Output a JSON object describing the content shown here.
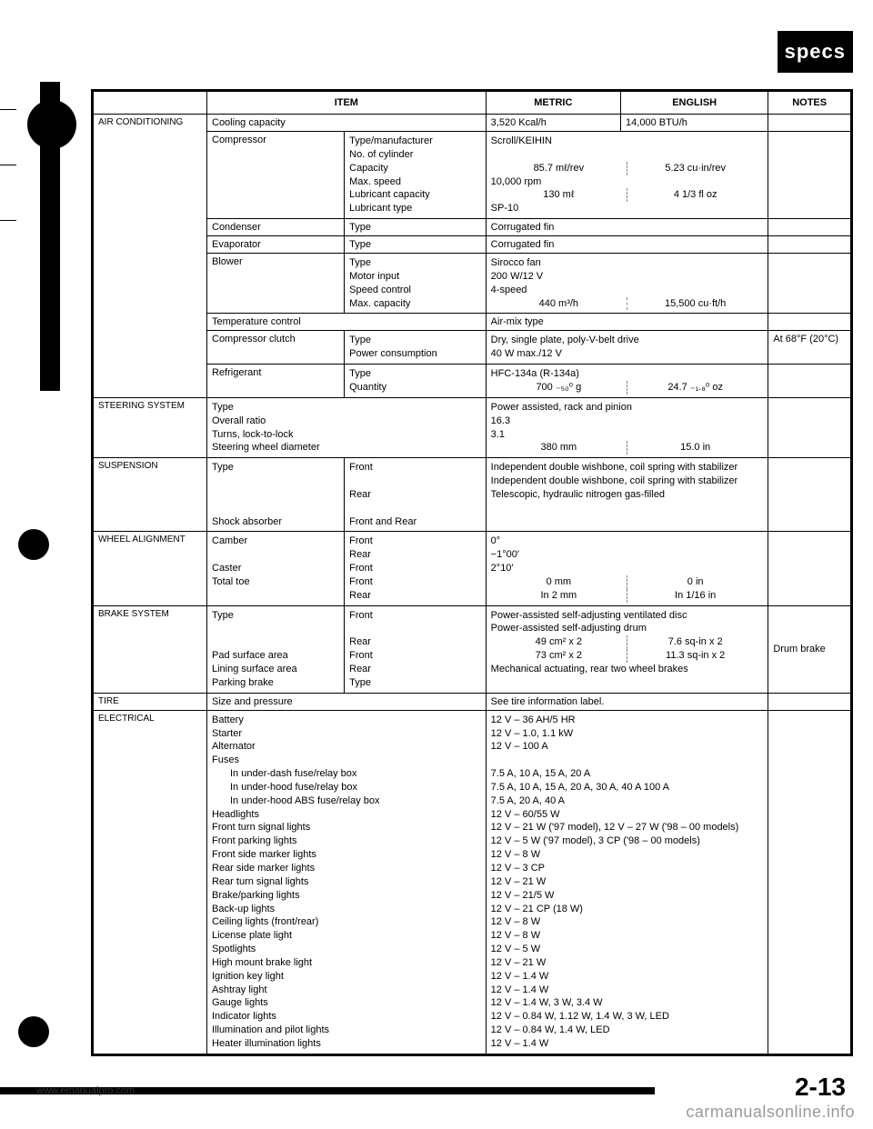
{
  "badge": "specs",
  "headers": {
    "item": "ITEM",
    "metric": "METRIC",
    "english": "ENGLISH",
    "notes": "NOTES"
  },
  "sections": {
    "ac": {
      "title": "AIR CONDITIONING",
      "rows": {
        "cooling": {
          "item": "Cooling capacity",
          "metric": "3,520 Kcal/h",
          "english": "14,000 BTU/h"
        },
        "compressor": {
          "item": "Compressor",
          "sub": [
            "Type/manufacturer",
            "No. of cylinder",
            "Capacity",
            "Max. speed",
            "Lubricant capacity",
            "Lubricant type"
          ],
          "span1": "Scroll/KEIHIN",
          "cap_m": "85.7 mℓ/rev",
          "cap_e": "5.23 cu·in/rev",
          "speed": "10,000 rpm",
          "lub_m": "130 mℓ",
          "lub_e": "4 1/3 fl oz",
          "lubtype": "SP-10"
        },
        "condenser": {
          "item": "Condenser",
          "sub": "Type",
          "val": "Corrugated fin"
        },
        "evaporator": {
          "item": "Evaporator",
          "sub": "Type",
          "val": "Corrugated fin"
        },
        "blower": {
          "item": "Blower",
          "sub": [
            "Type",
            "Motor input",
            "Speed control",
            "Max. capacity"
          ],
          "v1": "Sirocco fan",
          "v2": "200 W/12 V",
          "v3": "4-speed",
          "cap_m": "440 m³/h",
          "cap_e": "15,500 cu·ft/h"
        },
        "tempctrl": {
          "item": "Temperature control",
          "val": "Air-mix type"
        },
        "clutch": {
          "item": "Compressor clutch",
          "sub": [
            "Type",
            "Power consumption"
          ],
          "v1": "Dry, single plate, poly-V-belt drive",
          "v2": "40 W max./12 V",
          "note": "At 68°F (20°C)"
        },
        "refrigerant": {
          "item": "Refrigerant",
          "sub": [
            "Type",
            "Quantity"
          ],
          "v1": "HFC-134a (R-134a)",
          "q_m": "700 ₋₅₀⁰ g",
          "q_e": "24.7 ₋₁.₈⁰ oz"
        }
      }
    },
    "steering": {
      "title": "STEERING SYSTEM",
      "items": [
        "Type",
        "Overall ratio",
        "Turns, lock-to-lock",
        "Steering wheel diameter"
      ],
      "v1": "Power assisted, rack and pinion",
      "v2": "16.3",
      "v3": "3.1",
      "d_m": "380 mm",
      "d_e": "15.0 in"
    },
    "suspension": {
      "title": "SUSPENSION",
      "type": "Type",
      "front": "Front",
      "rear": "Rear",
      "type_f": "Independent double wishbone, coil spring with stabilizer",
      "type_r": "Independent double wishbone, coil spring with stabilizer",
      "shock": "Shock absorber",
      "shock_sub": "Front and Rear",
      "shock_v": "Telescopic, hydraulic nitrogen gas-filled"
    },
    "wheel": {
      "title": "WHEEL ALIGNMENT",
      "items": [
        "Camber",
        "",
        "Caster",
        "Total toe",
        ""
      ],
      "subs": [
        "Front",
        "Rear",
        "Front",
        "Front",
        "Rear"
      ],
      "v1": "0°",
      "v2": "−1°00′",
      "v3": "2°10′",
      "t_m1": "0 mm",
      "t_e1": "0 in",
      "t_m2": "In 2 mm",
      "t_e2": "In 1/16 in"
    },
    "brake": {
      "title": "BRAKE SYSTEM",
      "items": [
        "Type",
        "",
        "Pad surface area",
        "Lining surface area",
        "Parking brake"
      ],
      "subs": [
        "Front",
        "Rear",
        "Front",
        "Rear",
        "Type"
      ],
      "v1": "Power-assisted self-adjusting ventilated disc",
      "v2": "Power-assisted self-adjusting drum",
      "p_m": "49 cm² x 2",
      "p_e": "7.6 sq-in x 2",
      "l_m": "73 cm² x 2",
      "l_e": "11.3 sq-in x 2",
      "pb": "Mechanical actuating, rear two wheel brakes",
      "note": "Drum brake"
    },
    "tire": {
      "title": "TIRE",
      "item": "Size and pressure",
      "val": "See tire information label."
    },
    "electrical": {
      "title": "ELECTRICAL",
      "rows": [
        {
          "item": "Battery",
          "val": "12 V – 36 AH/5 HR"
        },
        {
          "item": "Starter",
          "val": "12 V – 1.0, 1.1 kW"
        },
        {
          "item": "Alternator",
          "val": "12 V – 100 A"
        },
        {
          "item": "Fuses",
          "val": ""
        },
        {
          "item": "In under-dash fuse/relay box",
          "indent": true,
          "val": "7.5 A, 10 A, 15 A, 20 A"
        },
        {
          "item": "In under-hood fuse/relay box",
          "indent": true,
          "val": "7.5 A, 10 A, 15 A, 20 A, 30 A, 40 A 100 A"
        },
        {
          "item": "In under-hood ABS fuse/relay box",
          "indent": true,
          "val": "7.5 A, 20 A, 40 A"
        },
        {
          "item": "Headlights",
          "val": "12 V – 60/55 W"
        },
        {
          "item": "Front turn signal lights",
          "val": "12 V – 21 W ('97 model), 12 V – 27 W ('98 – 00 models)"
        },
        {
          "item": "Front parking lights",
          "val": "12 V – 5 W ('97 model), 3 CP ('98 – 00 models)"
        },
        {
          "item": "Front side marker lights",
          "val": "12 V – 8 W"
        },
        {
          "item": "Rear side marker lights",
          "val": "12 V – 3 CP"
        },
        {
          "item": "Rear turn signal lights",
          "val": "12 V – 21 W"
        },
        {
          "item": "Brake/parking lights",
          "val": "12 V – 21/5 W"
        },
        {
          "item": "Back-up lights",
          "val": "12 V – 21 CP (18 W)"
        },
        {
          "item": "Ceiling lights (front/rear)",
          "val": "12 V – 8 W"
        },
        {
          "item": "License plate light",
          "val": "12 V – 8 W"
        },
        {
          "item": "Spotlights",
          "val": "12 V – 5 W"
        },
        {
          "item": "High mount brake light",
          "val": "12 V – 21 W"
        },
        {
          "item": "Ignition key light",
          "val": "12 V – 1.4 W"
        },
        {
          "item": "Ashtray light",
          "val": "12 V – 1.4 W"
        },
        {
          "item": "Gauge lights",
          "val": "12 V – 1.4 W, 3 W, 3.4 W"
        },
        {
          "item": "Indicator lights",
          "val": "12 V – 0.84 W, 1.12 W, 1.4 W, 3 W, LED"
        },
        {
          "item": "Illumination and pilot lights",
          "val": "12 V – 0.84 W, 1.4 W, LED"
        },
        {
          "item": "Heater illumination lights",
          "val": "12 V – 1.4 W"
        }
      ]
    }
  },
  "footer": {
    "url": "www.emanualpro.com",
    "page": "2-13",
    "watermark": "carmanualsonline.info"
  }
}
